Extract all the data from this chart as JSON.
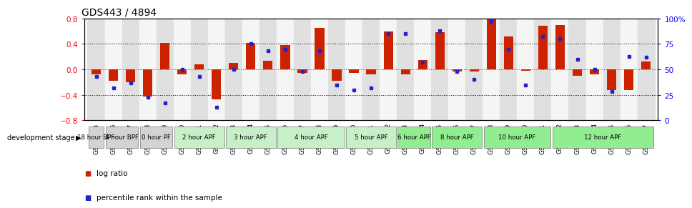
{
  "title": "GDS443 / 4894",
  "samples": [
    "GSM4585",
    "GSM4586",
    "GSM4587",
    "GSM4588",
    "GSM4589",
    "GSM4590",
    "GSM4591",
    "GSM4592",
    "GSM4593",
    "GSM4594",
    "GSM4595",
    "GSM4596",
    "GSM4597",
    "GSM4598",
    "GSM4599",
    "GSM4600",
    "GSM4601",
    "GSM4602",
    "GSM4603",
    "GSM4604",
    "GSM4605",
    "GSM4606",
    "GSM4607",
    "GSM4608",
    "GSM4609",
    "GSM4610",
    "GSM4611",
    "GSM4612",
    "GSM4613",
    "GSM4614",
    "GSM4615",
    "GSM4616",
    "GSM4617"
  ],
  "log_ratio": [
    -0.08,
    -0.18,
    -0.2,
    -0.42,
    0.42,
    -0.08,
    0.08,
    -0.47,
    0.1,
    0.42,
    0.13,
    0.38,
    -0.05,
    0.65,
    -0.18,
    -0.05,
    -0.08,
    0.6,
    -0.08,
    0.15,
    0.58,
    -0.03,
    -0.03,
    0.9,
    0.52,
    -0.02,
    0.68,
    0.7,
    -0.1,
    -0.08,
    -0.32,
    -0.32,
    0.12
  ],
  "percentile": [
    43,
    32,
    37,
    23,
    17,
    50,
    43,
    13,
    50,
    75,
    68,
    70,
    48,
    68,
    35,
    30,
    32,
    85,
    85,
    57,
    88,
    48,
    40,
    97,
    70,
    35,
    82,
    80,
    60,
    50,
    28,
    63,
    62
  ],
  "stages": [
    {
      "label": "18 hour BPF",
      "start": 0,
      "end": 1,
      "color": "#d3d3d3"
    },
    {
      "label": "4 hour BPF",
      "start": 1,
      "end": 3,
      "color": "#d3d3d3"
    },
    {
      "label": "0 hour PF",
      "start": 3,
      "end": 5,
      "color": "#d3d3d3"
    },
    {
      "label": "2 hour APF",
      "start": 5,
      "end": 8,
      "color": "#c8f0c8"
    },
    {
      "label": "3 hour APF",
      "start": 8,
      "end": 11,
      "color": "#c8f0c8"
    },
    {
      "label": "4 hour APF",
      "start": 11,
      "end": 15,
      "color": "#c8f0c8"
    },
    {
      "label": "5 hour APF",
      "start": 15,
      "end": 18,
      "color": "#c8f0c8"
    },
    {
      "label": "6 hour APF",
      "start": 18,
      "end": 20,
      "color": "#90ee90"
    },
    {
      "label": "8 hour APF",
      "start": 20,
      "end": 23,
      "color": "#90ee90"
    },
    {
      "label": "10 hour APF",
      "start": 23,
      "end": 27,
      "color": "#90ee90"
    },
    {
      "label": "12 hour APF",
      "start": 27,
      "end": 33,
      "color": "#90ee90"
    }
  ],
  "bar_color": "#cc2200",
  "dot_color": "#2222cc",
  "bg_even": "#e0e0e0",
  "bg_odd": "#f5f5f5",
  "ylim_left": [
    -0.8,
    0.8
  ],
  "ylim_right": [
    0,
    100
  ],
  "title_fontsize": 10,
  "xlabel_fontsize": 6.5,
  "ylabel_fontsize": 7.5,
  "legend_fontsize": 7.5
}
